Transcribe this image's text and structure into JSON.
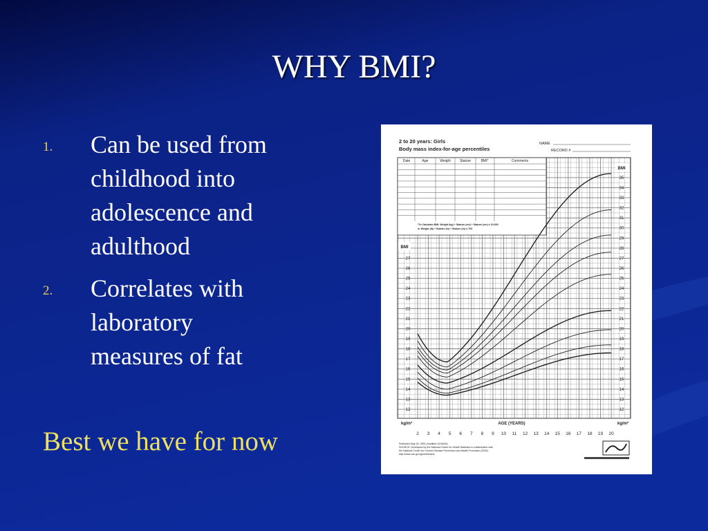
{
  "slide": {
    "title": "WHY BMI?",
    "items": [
      {
        "number": "1.",
        "lines": [
          "Can be used from",
          "childhood into",
          "adolescence and",
          "adulthood"
        ]
      },
      {
        "number": "2.",
        "lines": [
          "Correlates with",
          "laboratory",
          "measures of fat"
        ]
      }
    ],
    "closing": "Best we have for now"
  },
  "growth_chart": {
    "title": "2 to 20 years: Girls",
    "subtitle": "Body mass index-for-age percentiles",
    "name_label": "NAME",
    "record_label": "RECORD #",
    "table_headers": [
      "Date",
      "Age",
      "Weight",
      "Stature",
      "BMI*",
      "Comments"
    ],
    "formula": [
      "*To Calculate BMI: Weight (kg) ÷ Stature (cm) ÷ Stature (cm) x 10,000",
      "or Weight (lb) ÷ Stature (in) ÷ Stature (in) x 703"
    ],
    "y_axis_label": "BMI",
    "unit_label": "kg/m²",
    "x_axis_label": "AGE (YEARS)",
    "yticks": [
      12,
      13,
      14,
      15,
      16,
      17,
      18,
      19,
      20,
      21,
      22,
      23,
      24,
      25,
      26,
      27,
      28,
      29,
      30,
      31,
      32,
      33,
      34,
      35
    ],
    "xticks": [
      2,
      3,
      4,
      5,
      6,
      7,
      8,
      9,
      10,
      11,
      12,
      13,
      14,
      15,
      16,
      17,
      18,
      19,
      20
    ],
    "footnote": [
      "Published May 30, 2000 (modified 10/16/00).",
      "SOURCE: Developed by the National Center for Health Statistics in collaboration with",
      "the National Center for Chronic Disease Prevention and Health Promotion (2000).",
      "http://www.cdc.gov/growthcharts"
    ]
  }
}
